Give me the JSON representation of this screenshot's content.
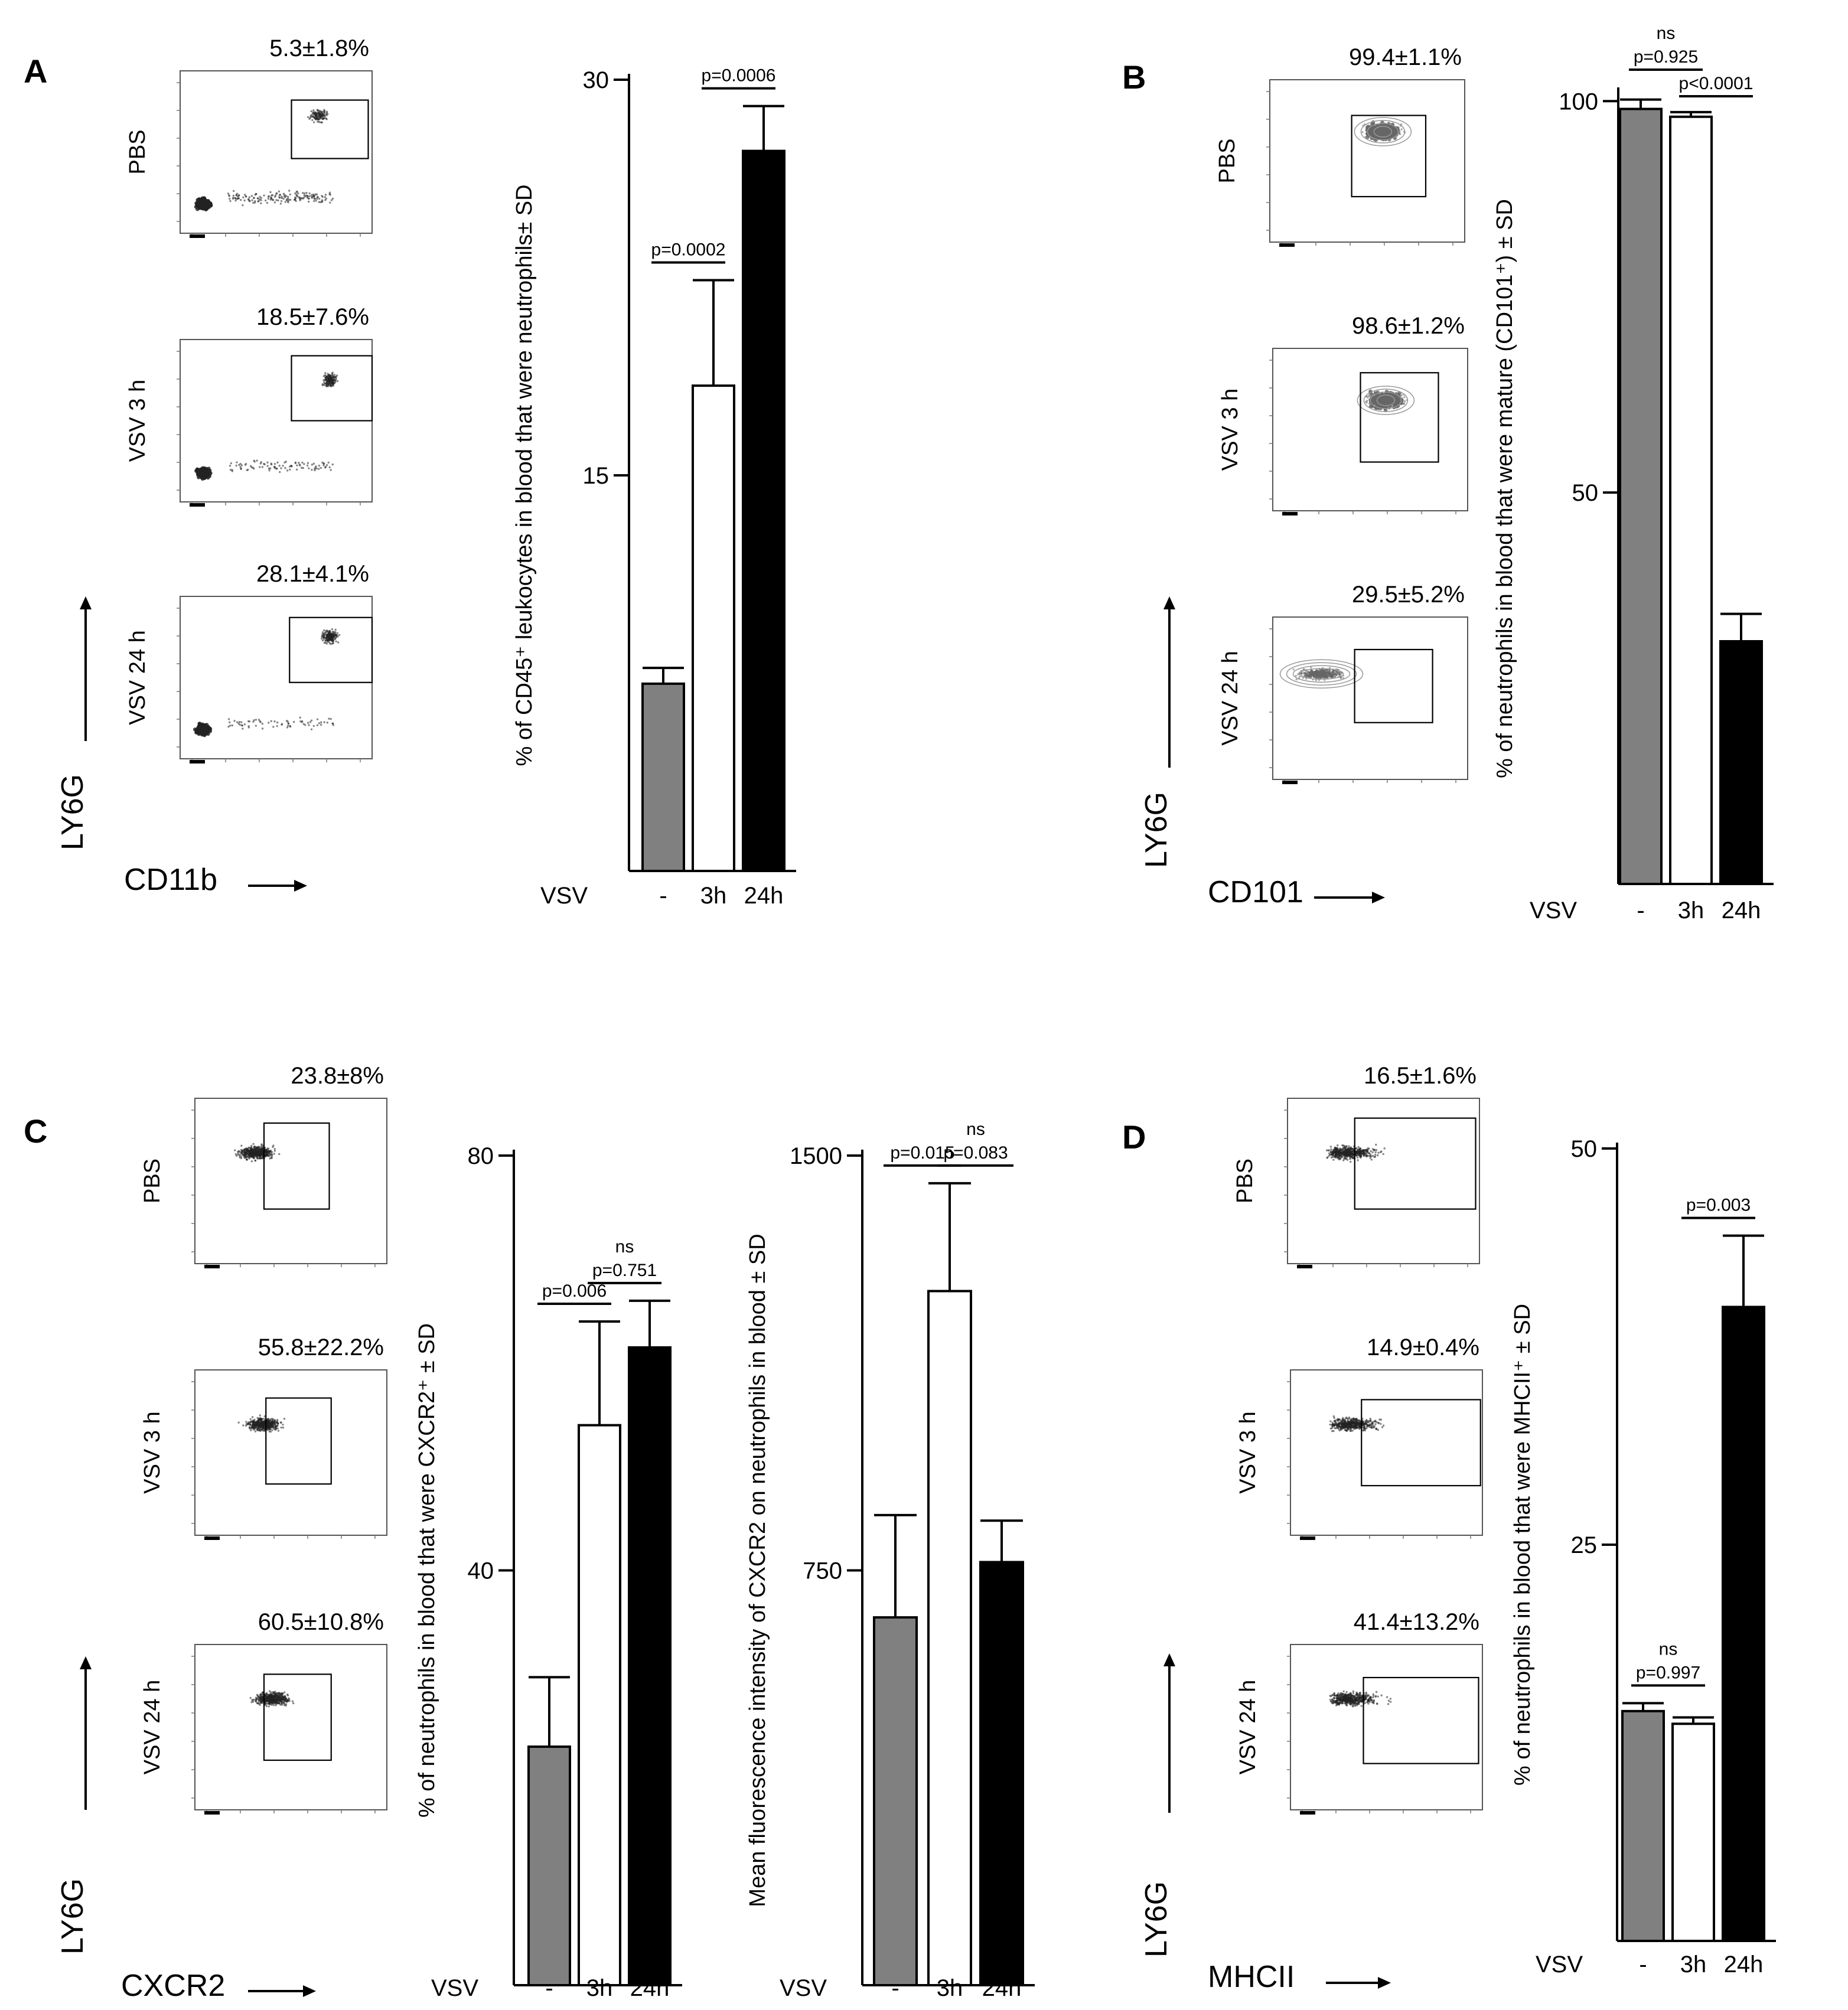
{
  "panels": [
    {
      "letter": "A",
      "flow": {
        "x_label": "CD11b",
        "y_label": "LY6G",
        "rows": [
          {
            "name": "PBS",
            "stat": "5.3±1.8%"
          },
          {
            "name": "VSV 3 h",
            "stat": "18.5±7.6%"
          },
          {
            "name": "VSV 24 h",
            "stat": "28.1±4.1%"
          }
        ]
      },
      "charts": [
        {
          "type": "bar",
          "ylabel": "% of CD45⁺ leukocytes in blood that were neutrophils± SD",
          "xlabel_prefix": "VSV",
          "categories": [
            "-",
            "3h",
            "24h"
          ],
          "values": [
            7.1,
            18.4,
            27.3
          ],
          "errors": [
            0.6,
            4.0,
            1.7
          ],
          "ylim": [
            0,
            30
          ],
          "yticks": [
            15,
            30
          ],
          "bar_colors": [
            "#808080",
            "#ffffff",
            "#000000"
          ],
          "comparisons": [
            {
              "from": 0,
              "to": 1,
              "text": "p=0.0002",
              "ns": ""
            },
            {
              "from": 1,
              "to": 2,
              "text": "p=0.0006",
              "ns": ""
            }
          ]
        }
      ]
    },
    {
      "letter": "B",
      "flow": {
        "x_label": "CD101",
        "y_label": "LY6G",
        "rows": [
          {
            "name": "PBS",
            "stat": "99.4±1.1%"
          },
          {
            "name": "VSV 3 h",
            "stat": "98.6±1.2%"
          },
          {
            "name": "VSV 24 h",
            "stat": "29.5±5.2%"
          }
        ]
      },
      "charts": [
        {
          "type": "bar",
          "ylabel": "% of neutrophils in blood that were mature (CD101⁺) ± SD",
          "xlabel_prefix": "VSV",
          "categories": [
            "-",
            "3h",
            "24h"
          ],
          "values": [
            99.0,
            98.0,
            31.0
          ],
          "errors": [
            1.2,
            0.6,
            3.5
          ],
          "ylim": [
            0,
            101
          ],
          "yticks": [
            50,
            100
          ],
          "bar_colors": [
            "#808080",
            "#ffffff",
            "#000000"
          ],
          "comparisons": [
            {
              "from": 0,
              "to": 1,
              "text": "p=0.925",
              "ns": "ns"
            },
            {
              "from": 1,
              "to": 2,
              "text": "p<0.0001",
              "ns": ""
            }
          ]
        }
      ]
    },
    {
      "letter": "C",
      "flow": {
        "x_label": "CXCR2",
        "y_label": "LY6G",
        "rows": [
          {
            "name": "PBS",
            "stat": "23.8±8%"
          },
          {
            "name": "VSV 3 h",
            "stat": "55.8±22.2%"
          },
          {
            "name": "VSV 24 h",
            "stat": "60.5±10.8%"
          }
        ]
      },
      "charts": [
        {
          "type": "bar",
          "ylabel": "% of neutrophils in blood that were CXCR2⁺ ± SD",
          "xlabel_prefix": "VSV",
          "categories": [
            "-",
            "3h",
            "24h"
          ],
          "values": [
            23.0,
            54.0,
            61.5
          ],
          "errors": [
            6.7,
            10.0,
            4.5
          ],
          "ylim": [
            0,
            80
          ],
          "yticks": [
            40,
            80
          ],
          "bar_colors": [
            "#808080",
            "#ffffff",
            "#000000"
          ],
          "comparisons": [
            {
              "from": 0,
              "to": 1,
              "text": "p=0.006",
              "ns": ""
            },
            {
              "from": 1,
              "to": 2,
              "text": "p=0.751",
              "ns": "ns"
            }
          ]
        },
        {
          "type": "bar",
          "ylabel": "Mean fluorescence intensity of CXCR2 on neutrophils in blood ± SD",
          "xlabel_prefix": "VSV",
          "categories": [
            "-",
            "3h",
            "24h"
          ],
          "values": [
            665,
            1255,
            765
          ],
          "errors": [
            185,
            195,
            75
          ],
          "ylim": [
            0,
            1500
          ],
          "yticks": [
            750,
            1500
          ],
          "bar_colors": [
            "#808080",
            "#ffffff",
            "#000000"
          ],
          "comparisons": [
            {
              "from": 0,
              "to": 1,
              "text": "p=0.015",
              "ns": ""
            },
            {
              "from": 1,
              "to": 2,
              "text": "p=0.083",
              "ns": "ns"
            }
          ]
        }
      ]
    },
    {
      "letter": "D",
      "flow": {
        "x_label": "MHCII",
        "y_label": "LY6G",
        "rows": [
          {
            "name": "PBS",
            "stat": "16.5±1.6%"
          },
          {
            "name": "VSV 3 h",
            "stat": "14.9±0.4%"
          },
          {
            "name": "VSV 24 h",
            "stat": "41.4±13.2%"
          }
        ]
      },
      "charts": [
        {
          "type": "bar",
          "ylabel": "% of neutrophils in blood that were MHCII⁺ ± SD",
          "xlabel_prefix": "VSV",
          "categories": [
            "-",
            "3h",
            "24h"
          ],
          "values": [
            14.5,
            13.7,
            40.0
          ],
          "errors": [
            0.5,
            0.4,
            4.5
          ],
          "ylim": [
            0,
            50
          ],
          "yticks": [
            25,
            50
          ],
          "bar_colors": [
            "#808080",
            "#ffffff",
            "#000000"
          ],
          "comparisons": [
            {
              "from": 0,
              "to": 1,
              "text": "p=0.997",
              "ns": "ns"
            },
            {
              "from": 1,
              "to": 2,
              "text": "p=0.003",
              "ns": ""
            }
          ]
        }
      ]
    }
  ]
}
